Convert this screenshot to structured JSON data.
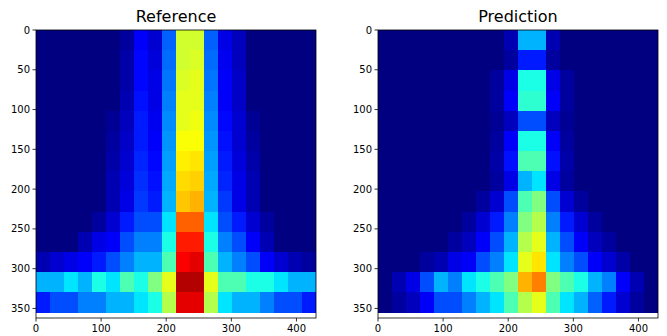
{
  "chart_data": [
    {
      "type": "heatmap",
      "title": "Reference",
      "xlim": [
        0,
        430
      ],
      "ylim": [
        362,
        0
      ],
      "xticks": [
        0,
        100,
        200,
        300,
        400
      ],
      "yticks": [
        0,
        50,
        100,
        150,
        200,
        250,
        300,
        350
      ],
      "clim": [
        0,
        1
      ],
      "x_edges": [
        0,
        21.5,
        43,
        64.5,
        86,
        107.5,
        129,
        150.5,
        172,
        193.5,
        215,
        236.5,
        258,
        279.5,
        301,
        322.5,
        344,
        365.5,
        387,
        408.5,
        430
      ],
      "y_edges": [
        0,
        25.4,
        50.7,
        76.1,
        101.4,
        126.8,
        152.1,
        177.5,
        202.9,
        228.2,
        253.6,
        278.9,
        304.3,
        329.6,
        355
      ],
      "cells": [
        [
          0,
          0,
          0,
          0,
          0,
          0,
          0.03,
          0.12,
          0.08,
          0.22,
          0.58,
          0.58,
          0.22,
          0.1,
          0.06,
          0,
          0,
          0,
          0,
          0
        ],
        [
          0,
          0,
          0,
          0,
          0,
          0,
          0.04,
          0.13,
          0.09,
          0.23,
          0.58,
          0.59,
          0.23,
          0.11,
          0.06,
          0,
          0,
          0,
          0,
          0
        ],
        [
          0,
          0,
          0,
          0,
          0,
          0,
          0.04,
          0.13,
          0.1,
          0.24,
          0.59,
          0.6,
          0.24,
          0.12,
          0.07,
          0,
          0,
          0,
          0,
          0
        ],
        [
          0,
          0,
          0,
          0,
          0,
          0,
          0.05,
          0.14,
          0.1,
          0.25,
          0.6,
          0.6,
          0.25,
          0.12,
          0.07,
          0,
          0,
          0,
          0,
          0
        ],
        [
          0,
          0,
          0,
          0,
          0,
          0.02,
          0.06,
          0.15,
          0.11,
          0.26,
          0.6,
          0.61,
          0.26,
          0.13,
          0.08,
          0.02,
          0,
          0,
          0,
          0
        ],
        [
          0,
          0,
          0,
          0,
          0,
          0.03,
          0.07,
          0.15,
          0.12,
          0.27,
          0.62,
          0.62,
          0.27,
          0.14,
          0.08,
          0.03,
          0,
          0,
          0,
          0
        ],
        [
          0,
          0,
          0,
          0,
          0,
          0.04,
          0.08,
          0.16,
          0.13,
          0.28,
          0.64,
          0.65,
          0.28,
          0.15,
          0.09,
          0.04,
          0,
          0,
          0,
          0
        ],
        [
          0,
          0,
          0,
          0,
          0,
          0.05,
          0.09,
          0.17,
          0.14,
          0.29,
          0.66,
          0.67,
          0.29,
          0.16,
          0.1,
          0.05,
          0,
          0,
          0,
          0
        ],
        [
          0,
          0,
          0,
          0,
          0,
          0.05,
          0.1,
          0.18,
          0.15,
          0.3,
          0.68,
          0.7,
          0.3,
          0.18,
          0.1,
          0.05,
          0,
          0,
          0,
          0
        ],
        [
          0,
          0,
          0,
          0,
          0.03,
          0.08,
          0.15,
          0.2,
          0.2,
          0.35,
          0.78,
          0.78,
          0.35,
          0.2,
          0.15,
          0.08,
          0.03,
          0,
          0,
          0
        ],
        [
          0,
          0,
          0,
          0.05,
          0.1,
          0.12,
          0.2,
          0.25,
          0.25,
          0.4,
          0.85,
          0.85,
          0.4,
          0.25,
          0.2,
          0.12,
          0.05,
          0,
          0,
          0
        ],
        [
          0.05,
          0.08,
          0.1,
          0.12,
          0.15,
          0.2,
          0.25,
          0.3,
          0.3,
          0.45,
          0.88,
          0.9,
          0.45,
          0.3,
          0.25,
          0.2,
          0.12,
          0.08,
          0.05,
          0.03
        ],
        [
          0.3,
          0.3,
          0.35,
          0.3,
          0.4,
          0.35,
          0.45,
          0.4,
          0.5,
          0.6,
          0.95,
          0.95,
          0.6,
          0.45,
          0.45,
          0.4,
          0.4,
          0.35,
          0.3,
          0.3
        ],
        [
          0.15,
          0.2,
          0.2,
          0.25,
          0.25,
          0.3,
          0.3,
          0.35,
          0.4,
          0.55,
          0.9,
          0.9,
          0.55,
          0.35,
          0.3,
          0.3,
          0.25,
          0.2,
          0.2,
          0.15
        ]
      ]
    },
    {
      "type": "heatmap",
      "title": "Prediction",
      "xlim": [
        0,
        430
      ],
      "ylim": [
        362,
        0
      ],
      "xticks": [
        0,
        100,
        200,
        300,
        400
      ],
      "yticks": [
        0,
        50,
        100,
        150,
        200,
        250,
        300,
        350
      ],
      "clim": [
        0,
        1
      ],
      "x_edges": [
        0,
        21.5,
        43,
        64.5,
        86,
        107.5,
        129,
        150.5,
        172,
        193.5,
        215,
        236.5,
        258,
        279.5,
        301,
        322.5,
        344,
        365.5,
        387,
        408.5,
        430
      ],
      "y_edges": [
        0,
        25.4,
        50.7,
        76.1,
        101.4,
        126.8,
        152.1,
        177.5,
        202.9,
        228.2,
        253.6,
        278.9,
        304.3,
        329.6,
        355
      ],
      "cells": [
        [
          0,
          0,
          0,
          0,
          0,
          0,
          0,
          0,
          0,
          0.05,
          0.3,
          0.3,
          0.05,
          0,
          0,
          0,
          0,
          0,
          0,
          0
        ],
        [
          0,
          0,
          0,
          0,
          0,
          0,
          0,
          0,
          0,
          0.03,
          0.15,
          0.15,
          0.03,
          0,
          0,
          0,
          0,
          0,
          0,
          0
        ],
        [
          0,
          0,
          0,
          0,
          0,
          0,
          0,
          0,
          0.03,
          0.1,
          0.4,
          0.4,
          0.1,
          0.03,
          0,
          0,
          0,
          0,
          0,
          0
        ],
        [
          0,
          0,
          0,
          0,
          0,
          0,
          0,
          0,
          0.03,
          0.12,
          0.42,
          0.42,
          0.12,
          0.03,
          0,
          0,
          0,
          0,
          0,
          0
        ],
        [
          0,
          0,
          0,
          0,
          0,
          0,
          0,
          0,
          0.02,
          0.06,
          0.2,
          0.2,
          0.06,
          0.02,
          0,
          0,
          0,
          0,
          0,
          0
        ],
        [
          0,
          0,
          0,
          0,
          0,
          0,
          0,
          0,
          0.03,
          0.12,
          0.4,
          0.4,
          0.12,
          0.03,
          0,
          0,
          0,
          0,
          0,
          0
        ],
        [
          0,
          0,
          0,
          0,
          0,
          0,
          0,
          0,
          0.04,
          0.14,
          0.45,
          0.45,
          0.14,
          0.04,
          0,
          0,
          0,
          0,
          0,
          0
        ],
        [
          0,
          0,
          0,
          0,
          0,
          0,
          0,
          0,
          0.03,
          0.1,
          0.3,
          0.35,
          0.1,
          0.03,
          0,
          0,
          0,
          0,
          0,
          0
        ],
        [
          0,
          0,
          0,
          0,
          0,
          0,
          0,
          0.03,
          0.08,
          0.2,
          0.45,
          0.5,
          0.2,
          0.08,
          0.03,
          0,
          0,
          0,
          0,
          0
        ],
        [
          0,
          0,
          0,
          0,
          0,
          0,
          0.03,
          0.08,
          0.15,
          0.25,
          0.5,
          0.55,
          0.25,
          0.15,
          0.08,
          0.03,
          0,
          0,
          0,
          0
        ],
        [
          0,
          0,
          0,
          0,
          0,
          0.03,
          0.06,
          0.12,
          0.2,
          0.3,
          0.55,
          0.6,
          0.3,
          0.2,
          0.12,
          0.06,
          0.03,
          0,
          0,
          0
        ],
        [
          0,
          0,
          0,
          0.03,
          0.05,
          0.1,
          0.12,
          0.2,
          0.25,
          0.35,
          0.6,
          0.65,
          0.35,
          0.25,
          0.2,
          0.12,
          0.08,
          0.04,
          0,
          0
        ],
        [
          0,
          0.05,
          0.1,
          0.2,
          0.3,
          0.25,
          0.35,
          0.4,
          0.45,
          0.5,
          0.7,
          0.75,
          0.5,
          0.45,
          0.4,
          0.3,
          0.25,
          0.12,
          0.05,
          0
        ],
        [
          0,
          0.03,
          0.06,
          0.12,
          0.2,
          0.2,
          0.25,
          0.3,
          0.35,
          0.45,
          0.55,
          0.6,
          0.45,
          0.35,
          0.3,
          0.22,
          0.15,
          0.08,
          0.03,
          0
        ]
      ]
    }
  ]
}
